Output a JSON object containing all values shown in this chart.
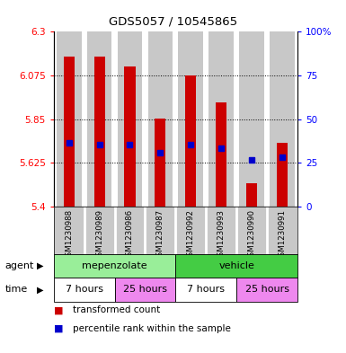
{
  "title": "GDS5057 / 10545865",
  "samples": [
    "GSM1230988",
    "GSM1230989",
    "GSM1230986",
    "GSM1230987",
    "GSM1230992",
    "GSM1230993",
    "GSM1230990",
    "GSM1230991"
  ],
  "bar_tops": [
    6.17,
    6.17,
    6.12,
    5.855,
    6.075,
    5.935,
    5.52,
    5.73
  ],
  "bar_bottoms": [
    5.4,
    5.4,
    5.4,
    5.4,
    5.4,
    5.4,
    5.4,
    5.4
  ],
  "percentile_values": [
    5.73,
    5.72,
    5.72,
    5.675,
    5.72,
    5.7,
    5.638,
    5.655
  ],
  "ylim_left": [
    5.4,
    6.3
  ],
  "ylim_right": [
    0,
    100
  ],
  "yticks_left": [
    5.4,
    5.625,
    5.85,
    6.075,
    6.3
  ],
  "yticks_left_labels": [
    "5.4",
    "5.625",
    "5.85",
    "6.075",
    "6.3"
  ],
  "yticks_right": [
    0,
    25,
    50,
    75,
    100
  ],
  "yticks_right_labels": [
    "0",
    "25",
    "50",
    "75",
    "100%"
  ],
  "bar_color": "#cc0000",
  "percentile_color": "#0000cc",
  "cell_bg_color": "#c8c8c8",
  "cell_border_color": "#ffffff",
  "agent_groups": [
    {
      "label": "mepenzolate",
      "start": 0,
      "end": 4,
      "color": "#99ee99"
    },
    {
      "label": "vehicle",
      "start": 4,
      "end": 8,
      "color": "#44cc44"
    }
  ],
  "time_groups": [
    {
      "label": "7 hours",
      "start": 0,
      "end": 2,
      "color": "#ffffff"
    },
    {
      "label": "25 hours",
      "start": 2,
      "end": 4,
      "color": "#ee88ee"
    },
    {
      "label": "7 hours",
      "start": 4,
      "end": 6,
      "color": "#ffffff"
    },
    {
      "label": "25 hours",
      "start": 6,
      "end": 8,
      "color": "#ee88ee"
    }
  ],
  "legend_items": [
    {
      "label": "transformed count",
      "color": "#cc0000"
    },
    {
      "label": "percentile rank within the sample",
      "color": "#0000cc"
    }
  ],
  "xlabel_agent": "agent",
  "xlabel_time": "time",
  "figure_bg": "#ffffff",
  "bar_width": 0.65
}
